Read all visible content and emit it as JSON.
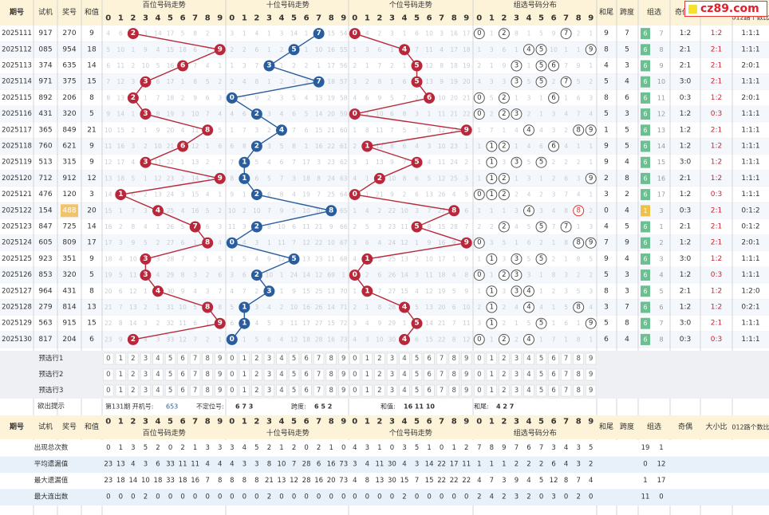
{
  "logo": {
    "text": "cz89.com"
  },
  "header": {
    "issue": "期号",
    "trial": "试机",
    "prize": "奖号",
    "sum": "和值",
    "sections": [
      "百位号码走势",
      "十位号码走势",
      "个位号码走势",
      "组选号码分布"
    ],
    "tail": "和尾",
    "span": "跨度",
    "group": "组选",
    "oddeven": "奇偶",
    "bigsmall": "大小比",
    "ratio012": "012路个数比",
    "digits": [
      "0",
      "1",
      "2",
      "3",
      "4",
      "5",
      "6",
      "7",
      "8",
      "9"
    ]
  },
  "rows": [
    {
      "issue": "2025111",
      "trial": "917",
      "prize": "270",
      "sum": "9",
      "tail": "9",
      "span": "7",
      "g": "6",
      "g2": "7",
      "oe": "1:2",
      "bs": "1:2",
      "r": "1:1:1"
    },
    {
      "issue": "2025112",
      "trial": "085",
      "prize": "954",
      "sum": "18",
      "tail": "8",
      "span": "5",
      "g": "6",
      "g2": "8",
      "oe": "2:1",
      "bs": "2:1",
      "r": "1:1:1"
    },
    {
      "issue": "2025113",
      "trial": "374",
      "prize": "635",
      "sum": "14",
      "tail": "4",
      "span": "3",
      "g": "6",
      "g2": "9",
      "oe": "2:1",
      "bs": "2:1",
      "r": "2:0:1"
    },
    {
      "issue": "2025114",
      "trial": "971",
      "prize": "375",
      "sum": "15",
      "tail": "5",
      "span": "4",
      "g": "6",
      "g2": "10",
      "oe": "3:0",
      "bs": "2:1",
      "r": "1:1:1"
    },
    {
      "issue": "2025115",
      "trial": "892",
      "prize": "206",
      "sum": "8",
      "tail": "8",
      "span": "6",
      "g": "6",
      "g2": "11",
      "oe": "0:3",
      "bs": "1:2",
      "r": "2:0:1"
    },
    {
      "issue": "2025116",
      "trial": "431",
      "prize": "320",
      "sum": "5",
      "tail": "5",
      "span": "3",
      "g": "6",
      "g2": "12",
      "oe": "1:2",
      "bs": "0:3",
      "r": "1:1:1"
    },
    {
      "issue": "2025117",
      "trial": "365",
      "prize": "849",
      "sum": "21",
      "tail": "1",
      "span": "5",
      "g": "6",
      "g2": "13",
      "oe": "1:2",
      "bs": "2:1",
      "r": "1:1:1"
    },
    {
      "issue": "2025118",
      "trial": "760",
      "prize": "621",
      "sum": "9",
      "tail": "9",
      "span": "5",
      "g": "6",
      "g2": "14",
      "oe": "1:2",
      "bs": "1:2",
      "r": "1:1:1"
    },
    {
      "issue": "2025119",
      "trial": "513",
      "prize": "315",
      "sum": "9",
      "tail": "9",
      "span": "4",
      "g": "6",
      "g2": "15",
      "oe": "3:0",
      "bs": "1:2",
      "r": "1:1:1"
    },
    {
      "issue": "2025120",
      "trial": "712",
      "prize": "912",
      "sum": "12",
      "tail": "2",
      "span": "8",
      "g": "6",
      "g2": "16",
      "oe": "2:1",
      "bs": "1:2",
      "r": "1:1:1"
    },
    {
      "issue": "2025121",
      "trial": "476",
      "prize": "120",
      "sum": "3",
      "tail": "3",
      "span": "2",
      "g": "6",
      "g2": "17",
      "oe": "1:2",
      "bs": "0:3",
      "r": "1:1:1"
    },
    {
      "issue": "2025122",
      "trial": "154",
      "prize": "488",
      "sum": "20",
      "tail": "0",
      "span": "4",
      "g": "1",
      "g2": "3",
      "oe": "0:3",
      "bs": "2:1",
      "r": "0:1:2",
      "prizeHL": true
    },
    {
      "issue": "2025123",
      "trial": "847",
      "prize": "725",
      "sum": "14",
      "tail": "4",
      "span": "5",
      "g": "6",
      "g2": "1",
      "oe": "2:1",
      "bs": "2:1",
      "r": "0:1:2"
    },
    {
      "issue": "2025124",
      "trial": "605",
      "prize": "809",
      "sum": "17",
      "tail": "7",
      "span": "9",
      "g": "6",
      "g2": "2",
      "oe": "1:2",
      "bs": "2:1",
      "r": "2:0:1"
    },
    {
      "issue": "2025125",
      "trial": "923",
      "prize": "351",
      "sum": "9",
      "tail": "9",
      "span": "4",
      "g": "6",
      "g2": "3",
      "oe": "3:0",
      "bs": "1:2",
      "r": "1:1:1"
    },
    {
      "issue": "2025126",
      "trial": "853",
      "prize": "320",
      "sum": "5",
      "tail": "5",
      "span": "3",
      "g": "6",
      "g2": "4",
      "oe": "1:2",
      "bs": "0:3",
      "r": "1:1:1"
    },
    {
      "issue": "2025127",
      "trial": "964",
      "prize": "431",
      "sum": "8",
      "tail": "8",
      "span": "3",
      "g": "6",
      "g2": "5",
      "oe": "2:1",
      "bs": "1:2",
      "r": "1:2:0"
    },
    {
      "issue": "2025128",
      "trial": "279",
      "prize": "814",
      "sum": "13",
      "tail": "3",
      "span": "7",
      "g": "6",
      "g2": "6",
      "oe": "1:2",
      "bs": "1:2",
      "r": "0:2:1"
    },
    {
      "issue": "2025129",
      "trial": "563",
      "prize": "915",
      "sum": "15",
      "tail": "5",
      "span": "8",
      "g": "6",
      "g2": "7",
      "oe": "3:0",
      "bs": "2:1",
      "r": "1:1:1"
    },
    {
      "issue": "2025130",
      "trial": "817",
      "prize": "204",
      "sum": "6",
      "tail": "6",
      "span": "4",
      "g": "6",
      "g2": "8",
      "oe": "0:3",
      "bs": "0:3",
      "r": "1:1:1"
    }
  ],
  "miss": {
    "hundreds": [
      [
        4,
        6,
        2,
        3,
        14,
        17,
        5,
        8,
        2,
        1
      ],
      [
        5,
        10,
        1,
        9,
        4,
        15,
        18,
        6,
        7,
        9
      ],
      [
        6,
        11,
        2,
        10,
        5,
        16,
        6,
        7,
        4,
        1
      ],
      [
        7,
        12,
        3,
        3,
        6,
        17,
        1,
        8,
        5,
        2
      ],
      [
        8,
        13,
        2,
        1,
        7,
        18,
        2,
        9,
        6,
        3
      ],
      [
        9,
        14,
        1,
        3,
        8,
        19,
        3,
        10,
        7,
        4
      ],
      [
        10,
        15,
        2,
        1,
        9,
        20,
        4,
        11,
        8,
        5
      ],
      [
        11,
        16,
        3,
        2,
        10,
        21,
        6,
        12,
        1,
        6
      ],
      [
        12,
        17,
        4,
        3,
        11,
        22,
        1,
        13,
        2,
        7
      ],
      [
        13,
        18,
        5,
        1,
        12,
        23,
        2,
        14,
        3,
        9
      ],
      [
        14,
        1,
        6,
        2,
        13,
        24,
        3,
        15,
        4,
        1
      ],
      [
        15,
        1,
        7,
        3,
        4,
        25,
        4,
        16,
        5,
        2
      ],
      [
        16,
        2,
        8,
        4,
        1,
        26,
        5,
        7,
        6,
        3
      ],
      [
        17,
        3,
        9,
        5,
        2,
        27,
        6,
        1,
        8,
        4
      ],
      [
        18,
        4,
        10,
        3,
        3,
        28,
        7,
        2,
        1,
        5
      ],
      [
        19,
        5,
        11,
        3,
        4,
        29,
        8,
        3,
        2,
        6
      ],
      [
        20,
        6,
        12,
        1,
        4,
        30,
        9,
        4,
        3,
        7
      ],
      [
        21,
        7,
        13,
        2,
        1,
        31,
        10,
        5,
        8,
        8
      ],
      [
        22,
        8,
        14,
        3,
        2,
        32,
        11,
        6,
        1,
        9
      ],
      [
        23,
        9,
        2,
        4,
        3,
        33,
        12,
        7,
        2,
        1
      ]
    ],
    "tens": [
      [
        3,
        1,
        4,
        1,
        3,
        14,
        1,
        1,
        15,
        54
      ],
      [
        2,
        2,
        6,
        1,
        2,
        5,
        1,
        10,
        16,
        55
      ],
      [
        1,
        3,
        7,
        3,
        1,
        2,
        2,
        1,
        17,
        56
      ],
      [
        2,
        4,
        8,
        1,
        2,
        3,
        3,
        7,
        18,
        57
      ],
      [
        3,
        5,
        9,
        2,
        3,
        5,
        4,
        13,
        19,
        58
      ],
      [
        4,
        6,
        2,
        3,
        4,
        6,
        5,
        14,
        20,
        59
      ],
      [
        1,
        7,
        3,
        2,
        4,
        7,
        6,
        15,
        21,
        60
      ],
      [
        6,
        8,
        2,
        3,
        5,
        8,
        1,
        16,
        22,
        61
      ],
      [
        7,
        1,
        5,
        4,
        6,
        7,
        17,
        3,
        23,
        62
      ],
      [
        8,
        1,
        6,
        5,
        7,
        3,
        18,
        8,
        24,
        63
      ],
      [
        9,
        1,
        2,
        6,
        8,
        4,
        19,
        7,
        25,
        64
      ],
      [
        10,
        2,
        10,
        7,
        9,
        5,
        10,
        30,
        8,
        65
      ],
      [
        11,
        3,
        2,
        8,
        10,
        6,
        11,
        21,
        9,
        66
      ],
      [
        1,
        4,
        3,
        1,
        11,
        7,
        12,
        22,
        10,
        67
      ],
      [
        1,
        5,
        4,
        9,
        12,
        5,
        13,
        23,
        11,
        68
      ],
      [
        3,
        6,
        2,
        10,
        1,
        24,
        14,
        12,
        69,
        1
      ],
      [
        4,
        7,
        2,
        3,
        1,
        9,
        15,
        25,
        13,
        70
      ],
      [
        5,
        1,
        3,
        4,
        2,
        10,
        16,
        26,
        14,
        71
      ],
      [
        6,
        1,
        4,
        5,
        3,
        11,
        17,
        27,
        15,
        72
      ],
      [
        0,
        1,
        5,
        6,
        4,
        12,
        18,
        28,
        16,
        73
      ]
    ],
    "units": [
      [
        0,
        4,
        2,
        3,
        1,
        6,
        10,
        3,
        16,
        17
      ],
      [
        1,
        3,
        6,
        1,
        4,
        7,
        11,
        4,
        17,
        18
      ],
      [
        2,
        1,
        7,
        2,
        1,
        5,
        12,
        8,
        18,
        19
      ],
      [
        3,
        2,
        8,
        1,
        6,
        5,
        13,
        9,
        19,
        20
      ],
      [
        4,
        6,
        9,
        5,
        7,
        2,
        6,
        10,
        20,
        21
      ],
      [
        0,
        7,
        10,
        6,
        8,
        3,
        1,
        11,
        21,
        22
      ],
      [
        1,
        8,
        11,
        7,
        5,
        3,
        8,
        12,
        22,
        9
      ],
      [
        2,
        1,
        12,
        8,
        6,
        4,
        3,
        10,
        23,
        1
      ],
      [
        3,
        1,
        13,
        9,
        7,
        5,
        4,
        11,
        24,
        2
      ],
      [
        4,
        1,
        2,
        10,
        8,
        6,
        5,
        12,
        25,
        3
      ],
      [
        0,
        1,
        21,
        9,
        2,
        6,
        13,
        26,
        4,
        5
      ],
      [
        1,
        4,
        2,
        22,
        10,
        3,
        7,
        27,
        8,
        6
      ],
      [
        2,
        5,
        3,
        23,
        11,
        5,
        8,
        15,
        28,
        7
      ],
      [
        3,
        6,
        4,
        24,
        12,
        1,
        9,
        16,
        9,
        8
      ],
      [
        4,
        1,
        5,
        25,
        13,
        2,
        10,
        17,
        1,
        9
      ],
      [
        0,
        2,
        6,
        26,
        14,
        3,
        11,
        18,
        4,
        8
      ],
      [
        1,
        1,
        7,
        27,
        15,
        4,
        12,
        19,
        5,
        9
      ],
      [
        2,
        1,
        8,
        28,
        4,
        5,
        13,
        20,
        6,
        10
      ],
      [
        3,
        4,
        9,
        29,
        1,
        5,
        14,
        21,
        7,
        11
      ],
      [
        4,
        3,
        10,
        30,
        4,
        6,
        15,
        22,
        8,
        12
      ]
    ],
    "group": [
      [
        0,
        1,
        2,
        8,
        1,
        5,
        9,
        7,
        2,
        1
      ],
      [
        1,
        3,
        6,
        1,
        4,
        5,
        10,
        1,
        1,
        9
      ],
      [
        2,
        1,
        9,
        3,
        1,
        5,
        6,
        7,
        9,
        1
      ],
      [
        4,
        3,
        3,
        2,
        5,
        1,
        2,
        7,
        5,
        2
      ],
      [
        0,
        5,
        2,
        1,
        3,
        1,
        6,
        1,
        6,
        3
      ],
      [
        0,
        2,
        3,
        4,
        2,
        1,
        3,
        4,
        7,
        4
      ],
      [
        1,
        7,
        1,
        4,
        1,
        4,
        3,
        2,
        8,
        9
      ],
      [
        1,
        1,
        2,
        1,
        4,
        6,
        2,
        4,
        1,
        1
      ],
      [
        1,
        1,
        3,
        2,
        5,
        5,
        2,
        2,
        2,
        1
      ],
      [
        1,
        1,
        2,
        1,
        3,
        1,
        2,
        6,
        3,
        9
      ],
      [
        0,
        1,
        2,
        2,
        4,
        2,
        3,
        7,
        4,
        1
      ],
      [
        1,
        1,
        1,
        3,
        4,
        3,
        4,
        8,
        8,
        2
      ],
      [
        2,
        2,
        2,
        4,
        5,
        5,
        7,
        3,
        1,
        3
      ],
      [
        0,
        3,
        5,
        1,
        6,
        2,
        1,
        8,
        9,
        4
      ],
      [
        1,
        2,
        3,
        2,
        5,
        1,
        2,
        1,
        8,
        5
      ],
      [
        0,
        1,
        2,
        3,
        3,
        1,
        8,
        3,
        2,
        2
      ],
      [
        1,
        1,
        3,
        4,
        3,
        1,
        2,
        3,
        5,
        3
      ],
      [
        2,
        1,
        2,
        4,
        3,
        4,
        1,
        5,
        8,
        4
      ],
      [
        3,
        1,
        2,
        1,
        5,
        1,
        1,
        6,
        1,
        9
      ],
      [
        0,
        1,
        2,
        2,
        4,
        1,
        7,
        1,
        8,
        1
      ]
    ]
  },
  "preselect": [
    "预选行1",
    "预选行2",
    "预选行3"
  ],
  "hint": {
    "label": "欲出提示",
    "issue_text": "第131期 开机号:",
    "issue_val": "653",
    "pos_text": "不定位号:",
    "pos_val": "6 7 3",
    "span_text": "跨度:",
    "span_val": "6 5 2",
    "sum_text": "和值:",
    "sum_val": "16 11 10",
    "tail_text": "和尾:",
    "tail_val": "4 2 7"
  },
  "stats": [
    {
      "label": "出现总次数",
      "h": [
        0,
        1,
        3,
        5,
        2,
        0,
        2,
        1,
        3,
        3
      ],
      "t": [
        3,
        4,
        5,
        2,
        1,
        2,
        0,
        2,
        1,
        0
      ],
      "u": [
        4,
        3,
        1,
        0,
        3,
        5,
        1,
        0,
        1,
        2
      ],
      "g": [
        7,
        8,
        9,
        7,
        6,
        7,
        3,
        4,
        3,
        5
      ],
      "gc": [
        "19",
        "1"
      ]
    },
    {
      "label": "平均遗漏值",
      "h": [
        23,
        13,
        4,
        3,
        6,
        33,
        11,
        11,
        4,
        4
      ],
      "t": [
        4,
        3,
        3,
        8,
        10,
        7,
        28,
        6,
        16,
        73
      ],
      "u": [
        3,
        4,
        11,
        30,
        4,
        3,
        14,
        22,
        17,
        11
      ],
      "g": [
        1,
        1,
        1,
        2,
        2,
        2,
        6,
        4,
        3,
        2
      ],
      "gc": [
        "0",
        "12"
      ]
    },
    {
      "label": "最大遗漏值",
      "h": [
        23,
        18,
        14,
        10,
        18,
        33,
        18,
        16,
        7,
        8
      ],
      "t": [
        8,
        8,
        8,
        21,
        13,
        12,
        28,
        16,
        20,
        73
      ],
      "u": [
        4,
        8,
        13,
        30,
        15,
        7,
        15,
        22,
        22,
        22
      ],
      "g": [
        4,
        7,
        3,
        9,
        4,
        5,
        12,
        8,
        7,
        4
      ],
      "gc": [
        "1",
        "17"
      ]
    },
    {
      "label": "最大连出数",
      "h": [
        0,
        0,
        0,
        2,
        0,
        0,
        0,
        0,
        0,
        0
      ],
      "t": [
        0,
        0,
        0,
        2,
        0,
        0,
        0,
        0,
        0,
        0
      ],
      "u": [
        0,
        0,
        0,
        0,
        2,
        0,
        0,
        0,
        0,
        0
      ],
      "g": [
        2,
        4,
        2,
        3,
        2,
        0,
        3,
        0,
        2,
        0
      ],
      "gc": [
        "11",
        "0"
      ]
    }
  ],
  "colors": {
    "red": "#b8283a",
    "blue": "#2a5d9d",
    "header": "#fdf3d8",
    "row_alt": "#f4f7fb",
    "green": "#6bbf90"
  },
  "chart_data": {
    "type": "table",
    "title": "",
    "series": [
      {
        "name": "百位号码走势",
        "values": [
          2,
          9,
          6,
          3,
          2,
          3,
          8,
          6,
          3,
          9,
          1,
          4,
          7,
          8,
          3,
          3,
          4,
          8,
          9,
          2
        ]
      },
      {
        "name": "十位号码走势",
        "values": [
          7,
          5,
          3,
          7,
          0,
          2,
          4,
          2,
          1,
          1,
          2,
          8,
          2,
          0,
          5,
          2,
          3,
          1,
          1,
          0
        ]
      },
      {
        "name": "个位号码走势",
        "values": [
          0,
          4,
          5,
          5,
          6,
          0,
          9,
          1,
          5,
          2,
          0,
          8,
          5,
          9,
          1,
          0,
          1,
          4,
          5,
          4
        ]
      }
    ]
  }
}
